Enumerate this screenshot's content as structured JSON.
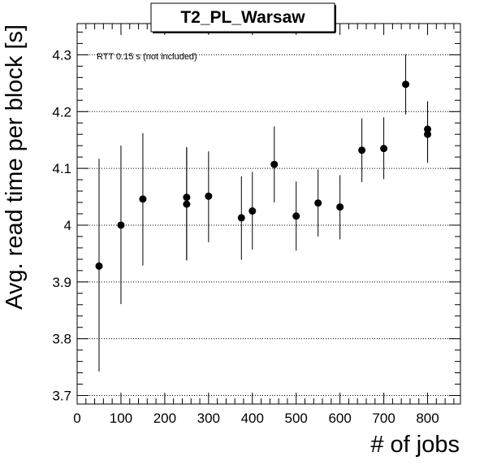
{
  "chart_data": {
    "type": "scatter",
    "title": "T2_PL_Warsaw",
    "xlabel": "# of jobs",
    "ylabel": "Avg. read time per block [s]",
    "annotation": "RTT 0.15 s (not included)",
    "xlim": [
      0,
      875
    ],
    "ylim": [
      3.685,
      4.355
    ],
    "x_ticks": [
      0,
      100,
      200,
      300,
      400,
      500,
      600,
      700,
      800
    ],
    "x_tick_labels": [
      "0",
      "100",
      "200",
      "300",
      "400",
      "500",
      "600",
      "700",
      "800"
    ],
    "y_ticks": [
      3.7,
      3.8,
      3.9,
      4.0,
      4.1,
      4.2,
      4.3
    ],
    "y_tick_labels": [
      "3.7",
      "3.8",
      "3.9",
      "4",
      "4.1",
      "4.2",
      "4.3"
    ],
    "grid": {
      "x": false,
      "y": true
    },
    "points": [
      {
        "x": 50,
        "y": 3.928,
        "ylow": 3.742,
        "yhigh": 4.117
      },
      {
        "x": 100,
        "y": 4.0,
        "ylow": 3.861,
        "yhigh": 4.14
      },
      {
        "x": 150,
        "y": 4.046,
        "ylow": 3.929,
        "yhigh": 4.162
      },
      {
        "x": 250,
        "y": 4.049,
        "ylow": 3.938,
        "yhigh": 4.137
      },
      {
        "x": 250,
        "y": 4.037,
        "ylow": 3.938,
        "yhigh": 4.137
      },
      {
        "x": 300,
        "y": 4.051,
        "ylow": 3.97,
        "yhigh": 4.13
      },
      {
        "x": 375,
        "y": 4.013,
        "ylow": 3.939,
        "yhigh": 4.086
      },
      {
        "x": 400,
        "y": 4.025,
        "ylow": 3.957,
        "yhigh": 4.094
      },
      {
        "x": 450,
        "y": 4.107,
        "ylow": 4.04,
        "yhigh": 4.174
      },
      {
        "x": 500,
        "y": 4.016,
        "ylow": 3.955,
        "yhigh": 4.077
      },
      {
        "x": 550,
        "y": 4.039,
        "ylow": 3.98,
        "yhigh": 4.098
      },
      {
        "x": 600,
        "y": 4.032,
        "ylow": 3.975,
        "yhigh": 4.088
      },
      {
        "x": 650,
        "y": 4.132,
        "ylow": 4.076,
        "yhigh": 4.188
      },
      {
        "x": 700,
        "y": 4.135,
        "ylow": 4.081,
        "yhigh": 4.19
      },
      {
        "x": 750,
        "y": 4.248,
        "ylow": 4.195,
        "yhigh": 4.301
      },
      {
        "x": 800,
        "y": 4.169,
        "ylow": 4.11,
        "yhigh": 4.218
      },
      {
        "x": 800,
        "y": 4.16,
        "ylow": 4.11,
        "yhigh": 4.218
      }
    ],
    "colors": {
      "marker": "#000000",
      "frame": "#000000",
      "grid": "#000000",
      "background": "#ffffff"
    }
  }
}
